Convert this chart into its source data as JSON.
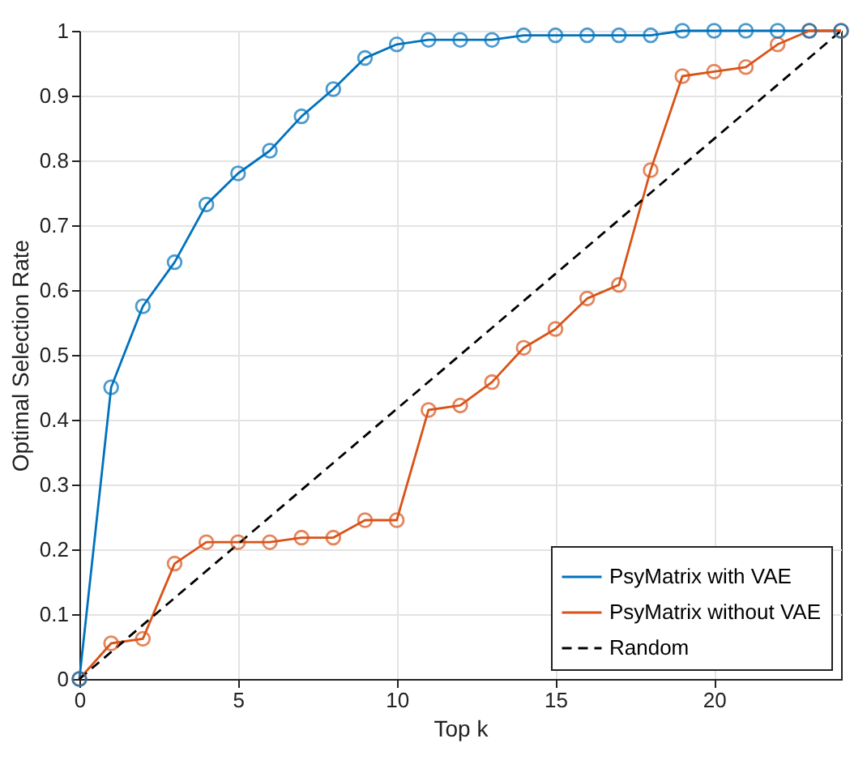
{
  "chart_data": {
    "type": "line",
    "xlabel": "Top k",
    "ylabel": "Optimal Selection Rate",
    "x": [
      0,
      1,
      2,
      3,
      4,
      5,
      6,
      7,
      8,
      9,
      10,
      11,
      12,
      13,
      14,
      15,
      16,
      17,
      18,
      19,
      20,
      21,
      22,
      23,
      24
    ],
    "series": [
      {
        "name": "PsyMatrix with VAE",
        "color": "#0072bd",
        "marker": "circle",
        "line_style": "solid",
        "values": [
          0,
          0.45,
          0.575,
          0.643,
          0.732,
          0.78,
          0.815,
          0.868,
          0.91,
          0.958,
          0.979,
          0.986,
          0.986,
          0.986,
          0.993,
          0.993,
          0.993,
          0.993,
          0.993,
          1,
          1,
          1,
          1,
          1,
          1
        ]
      },
      {
        "name": "PsyMatrix without VAE",
        "color": "#d95319",
        "marker": "circle",
        "line_style": "solid",
        "values": [
          0,
          0.055,
          0.062,
          0.178,
          0.211,
          0.211,
          0.211,
          0.218,
          0.218,
          0.245,
          0.245,
          0.415,
          0.422,
          0.458,
          0.511,
          0.54,
          0.587,
          0.608,
          0.785,
          0.93,
          0.937,
          0.944,
          0.979,
          1,
          1
        ]
      },
      {
        "name": "Random",
        "color": "#000000",
        "marker": "none",
        "line_style": "dashed",
        "x": [
          0,
          24
        ],
        "values": [
          0,
          1
        ]
      }
    ],
    "xlim": [
      0,
      24
    ],
    "xticks": [
      0,
      5,
      10,
      15,
      20
    ],
    "ylim": [
      0,
      1
    ],
    "yticks": [
      0,
      0.1,
      0.2,
      0.3,
      0.4,
      0.5,
      0.6,
      0.7,
      0.8,
      0.9,
      1
    ],
    "grid": true,
    "legend": "bottom right"
  }
}
